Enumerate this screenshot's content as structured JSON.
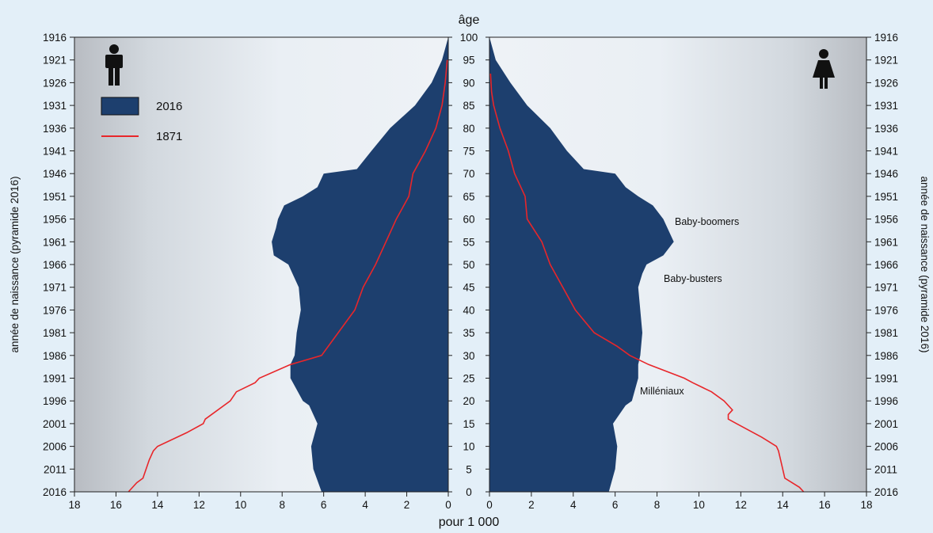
{
  "chart_data": {
    "type": "area",
    "kind": "population pyramid",
    "xlabel": "pour 1 000",
    "age_axis_label": "âge",
    "birth_year_axis_label": "année de naissance (pyramide 2016)",
    "x_ticks_left": [
      "18",
      "16",
      "14",
      "12",
      "10",
      "8",
      "6",
      "4",
      "2",
      "0"
    ],
    "x_ticks_right": [
      "0",
      "2",
      "4",
      "6",
      "8",
      "10",
      "12",
      "14",
      "16",
      "18"
    ],
    "xlim": [
      0,
      18
    ],
    "age_ticks": [
      "0",
      "5",
      "10",
      "15",
      "20",
      "25",
      "30",
      "35",
      "40",
      "45",
      "50",
      "55",
      "60",
      "65",
      "70",
      "75",
      "80",
      "85",
      "90",
      "95",
      "100"
    ],
    "year_ticks": [
      "2016",
      "2011",
      "2006",
      "2001",
      "1996",
      "1991",
      "1986",
      "1981",
      "1976",
      "1971",
      "1966",
      "1961",
      "1956",
      "1951",
      "1946",
      "1941",
      "1936",
      "1931",
      "1926",
      "1921",
      "1916"
    ],
    "ylim": [
      0,
      100
    ],
    "legend": [
      {
        "label": "2016",
        "style": "fill",
        "color": "#1d3f6e"
      },
      {
        "label": "1871",
        "style": "line",
        "color": "#e8262a"
      }
    ],
    "annotations": [
      "Baby-boomers",
      "Baby-busters",
      "Milléniaux"
    ],
    "series": [
      {
        "name": "2016",
        "sex": "homme",
        "ages": [
          0,
          5,
          10,
          15,
          19,
          20,
          25,
          28,
          30,
          35,
          40,
          45,
          48,
          50,
          52,
          55,
          58,
          60,
          63,
          65,
          67,
          70,
          71,
          75,
          80,
          85,
          90,
          95,
          100
        ],
        "values": [
          6.1,
          6.5,
          6.6,
          6.3,
          6.7,
          7.0,
          7.6,
          7.6,
          7.4,
          7.3,
          7.1,
          7.2,
          7.5,
          7.7,
          8.4,
          8.5,
          8.3,
          8.2,
          7.9,
          7.0,
          6.3,
          6.0,
          4.4,
          3.7,
          2.8,
          1.6,
          0.8,
          0.3,
          0.0
        ]
      },
      {
        "name": "2016",
        "sex": "femme",
        "ages": [
          0,
          5,
          10,
          15,
          19,
          20,
          25,
          28,
          30,
          35,
          40,
          45,
          48,
          50,
          52,
          55,
          58,
          60,
          63,
          65,
          67,
          70,
          71,
          75,
          80,
          85,
          90,
          95,
          100
        ],
        "values": [
          5.7,
          6.0,
          6.1,
          5.9,
          6.5,
          6.8,
          7.1,
          7.1,
          7.2,
          7.3,
          7.2,
          7.1,
          7.3,
          7.5,
          8.3,
          8.8,
          8.5,
          8.3,
          7.8,
          7.1,
          6.5,
          6.0,
          4.5,
          3.7,
          2.9,
          1.8,
          1.0,
          0.3,
          0.0
        ]
      },
      {
        "name": "1871",
        "sex": "homme",
        "ages": [
          0,
          2,
          3,
          7,
          9,
          10,
          13,
          15,
          16,
          20,
          22,
          24,
          25,
          28,
          30,
          35,
          40,
          45,
          50,
          55,
          60,
          65,
          70,
          75,
          80,
          85,
          90,
          95
        ],
        "values": [
          15.4,
          15.0,
          14.7,
          14.4,
          14.2,
          14.0,
          12.6,
          11.8,
          11.7,
          10.5,
          10.2,
          9.3,
          9.1,
          7.6,
          6.1,
          5.3,
          4.5,
          4.1,
          3.5,
          3.0,
          2.5,
          1.9,
          1.7,
          1.1,
          0.6,
          0.3,
          0.15,
          0.05
        ]
      },
      {
        "name": "1871",
        "sex": "femme",
        "ages": [
          0,
          1,
          3,
          7,
          9,
          10,
          12,
          15,
          16,
          17,
          18,
          20,
          22,
          24,
          25,
          28,
          30,
          32,
          35,
          40,
          45,
          50,
          55,
          60,
          65,
          70,
          75,
          80,
          85,
          88,
          92
        ],
        "values": [
          15.0,
          14.8,
          14.1,
          13.9,
          13.8,
          13.7,
          13.0,
          11.8,
          11.4,
          11.4,
          11.6,
          11.2,
          10.6,
          9.7,
          9.3,
          7.6,
          6.7,
          6.1,
          5.0,
          4.1,
          3.5,
          2.9,
          2.5,
          1.8,
          1.7,
          1.2,
          0.9,
          0.5,
          0.2,
          0.1,
          0.05
        ]
      }
    ]
  }
}
